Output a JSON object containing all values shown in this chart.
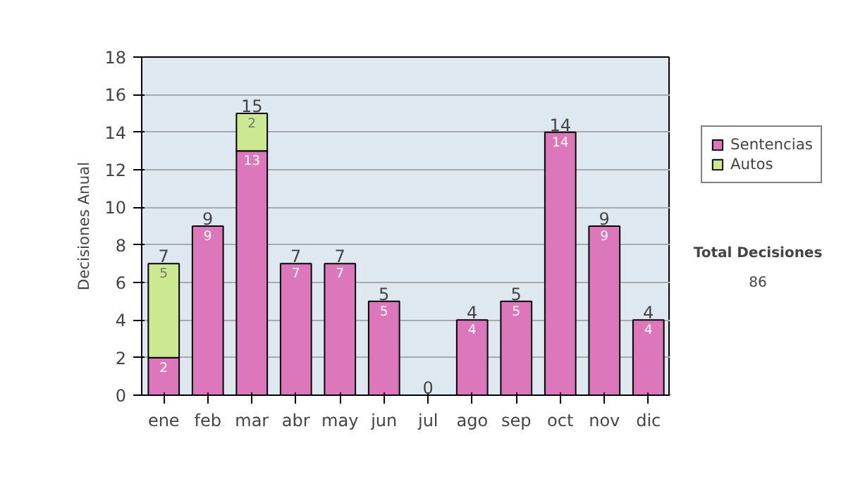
{
  "chart_data": {
    "type": "bar",
    "stacked": true,
    "ylabel": "Decisiones Anual",
    "categories": [
      "ene",
      "feb",
      "mar",
      "abr",
      "may",
      "jun",
      "jul",
      "ago",
      "sep",
      "oct",
      "nov",
      "dic"
    ],
    "series": [
      {
        "name": "Sentencias",
        "color": "#dd77bb",
        "values": [
          2,
          9,
          13,
          7,
          7,
          5,
          0,
          4,
          5,
          14,
          9,
          4
        ],
        "value_labels": [
          "2",
          "9",
          "13",
          "7",
          "7",
          "5",
          null,
          "4",
          "5",
          "14",
          "9",
          "4"
        ]
      },
      {
        "name": "Autos",
        "color": "#cce890",
        "values": [
          5,
          0,
          2,
          0,
          0,
          0,
          0,
          0,
          0,
          0,
          0,
          0
        ],
        "value_labels": [
          "5",
          null,
          "2",
          null,
          null,
          null,
          null,
          null,
          null,
          null,
          null,
          null
        ]
      }
    ],
    "totals": [
      "7",
      "9",
      "15",
      "7",
      "7",
      "5",
      "0",
      "4",
      "5",
      "14",
      "9",
      "4"
    ],
    "ylim": [
      0,
      18
    ],
    "yticks": [
      0,
      2,
      4,
      6,
      8,
      10,
      12,
      14,
      16,
      18
    ],
    "grid": "y",
    "legend": "right",
    "annotations": [
      "Total Decisiones",
      "86"
    ]
  }
}
